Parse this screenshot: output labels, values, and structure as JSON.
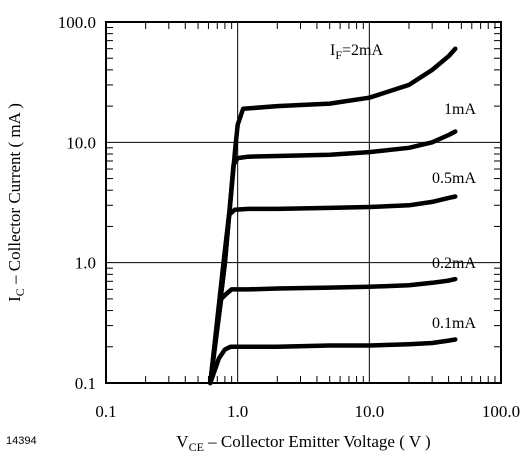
{
  "figure_id": "14394",
  "chart_data": {
    "type": "line",
    "x_scale": "log",
    "y_scale": "log",
    "xlim": [
      0.1,
      100.0
    ],
    "ylim": [
      0.1,
      100.0
    ],
    "grid": "major decades",
    "x_tick_labels": [
      "0.1",
      "1.0",
      "10.0",
      "100.0"
    ],
    "y_tick_labels": [
      "0.1",
      "1.0",
      "10.0",
      "100.0"
    ],
    "xlabel": {
      "main": "V",
      "sub": "CE",
      "rest": " – Collector Emitter Voltage ( V )"
    },
    "ylabel": {
      "main": "I",
      "sub": "C",
      "rest": " – Collector Current ( mA )"
    },
    "series": [
      {
        "name": "IF=2mA",
        "label": {
          "main": "I",
          "sub": "F",
          "rest": "=2mA"
        },
        "x": [
          0.62,
          0.8,
          0.96,
          1.0,
          1.1,
          2.0,
          5.0,
          10.0,
          20.0,
          30.0,
          40.0,
          45.0
        ],
        "y": [
          0.1,
          1.0,
          9.0,
          14.0,
          19.0,
          20.0,
          21.0,
          23.5,
          30.0,
          40.0,
          52.0,
          60.0
        ]
      },
      {
        "name": "1mA",
        "label": {
          "main": "1mA"
        },
        "x": [
          0.62,
          0.8,
          0.93,
          1.0,
          1.2,
          2.0,
          5.0,
          10.0,
          20.0,
          30.0,
          40.0,
          45.0
        ],
        "y": [
          0.1,
          1.0,
          6.5,
          7.4,
          7.6,
          7.7,
          7.9,
          8.3,
          9.0,
          10.0,
          11.5,
          12.3
        ]
      },
      {
        "name": "0.5mA",
        "label": {
          "main": "0.5mA"
        },
        "x": [
          0.62,
          0.78,
          0.86,
          0.95,
          1.2,
          2.0,
          5.0,
          10.0,
          20.0,
          30.0,
          40.0,
          45.0
        ],
        "y": [
          0.1,
          1.0,
          2.5,
          2.75,
          2.8,
          2.8,
          2.85,
          2.9,
          3.0,
          3.2,
          3.45,
          3.55
        ]
      },
      {
        "name": "0.2mA",
        "label": {
          "main": "0.2mA"
        },
        "x": [
          0.62,
          0.75,
          0.82,
          0.9,
          1.2,
          2.0,
          5.0,
          10.0,
          20.0,
          30.0,
          40.0,
          45.0
        ],
        "y": [
          0.1,
          0.5,
          0.55,
          0.6,
          0.6,
          0.61,
          0.62,
          0.63,
          0.65,
          0.68,
          0.71,
          0.73
        ]
      },
      {
        "name": "0.1mA",
        "label": {
          "main": "0.1mA"
        },
        "x": [
          0.62,
          0.72,
          0.8,
          0.88,
          1.2,
          2.0,
          5.0,
          10.0,
          20.0,
          30.0,
          40.0,
          45.0
        ],
        "y": [
          0.1,
          0.16,
          0.19,
          0.2,
          0.2,
          0.2,
          0.205,
          0.205,
          0.21,
          0.215,
          0.225,
          0.23
        ]
      }
    ]
  }
}
